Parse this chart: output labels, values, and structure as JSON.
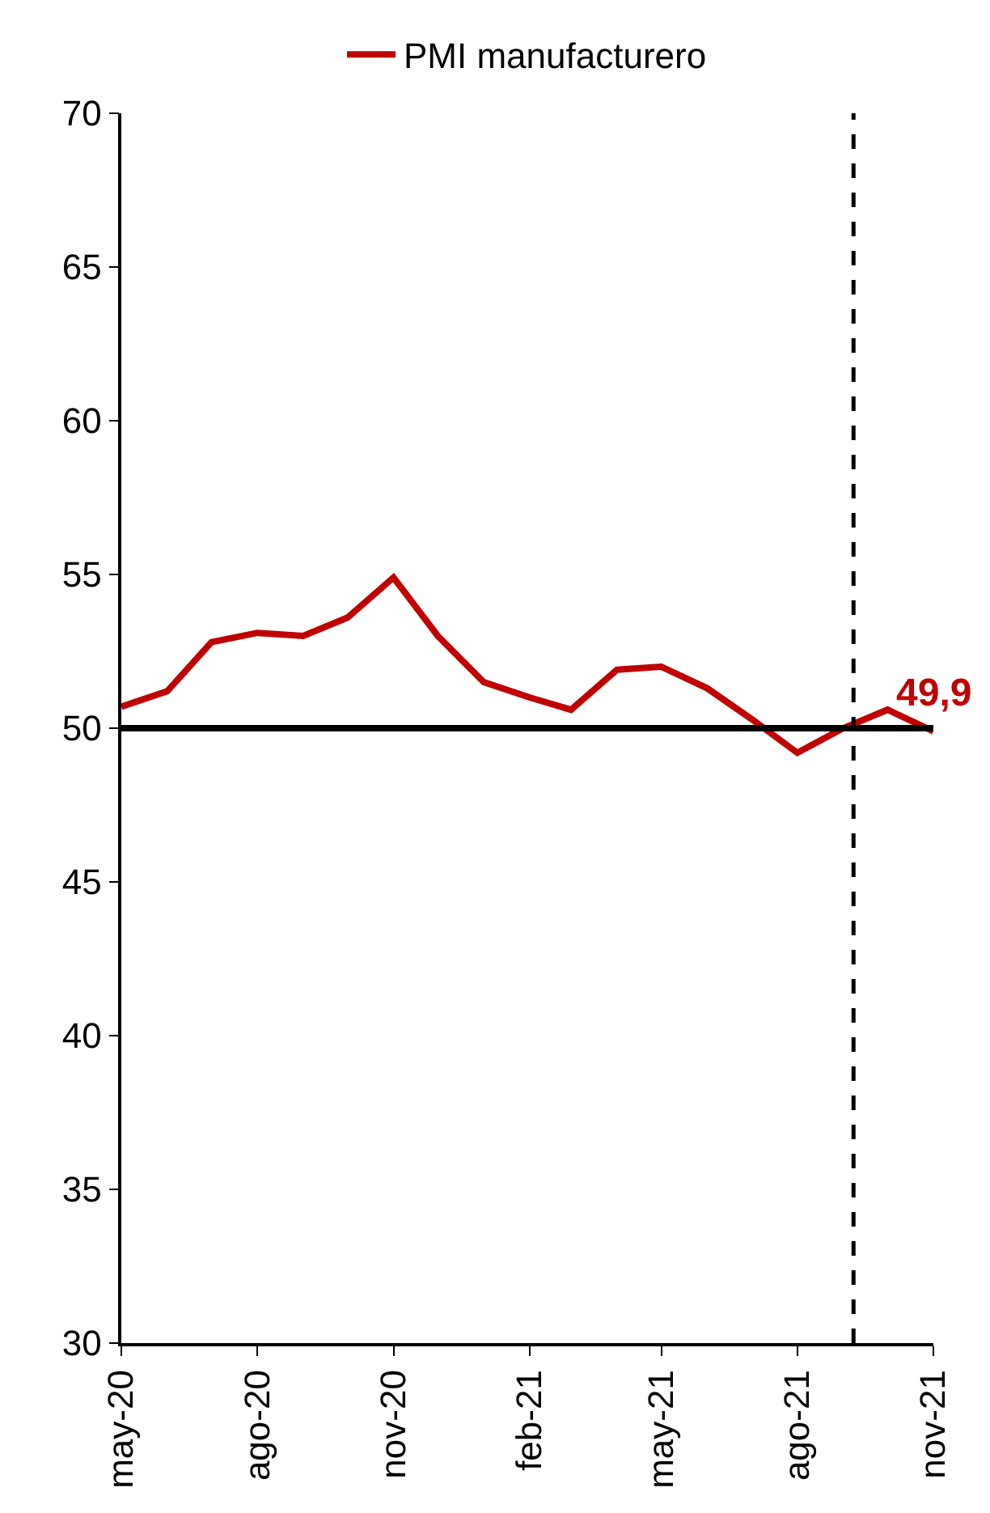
{
  "chart_data": {
    "type": "line",
    "x": [
      "2020-05",
      "2020-06",
      "2020-07",
      "2020-08",
      "2020-09",
      "2020-10",
      "2020-11",
      "2020-12",
      "2021-01",
      "2021-02",
      "2021-03",
      "2021-04",
      "2021-05",
      "2021-06",
      "2021-07",
      "2021-08",
      "2021-09",
      "2021-10",
      "2021-11"
    ],
    "series": [
      {
        "name": "PMI manufacturero",
        "color": "#c00000",
        "values": [
          50.7,
          51.2,
          52.8,
          53.1,
          53.0,
          53.6,
          54.9,
          53.0,
          51.5,
          51.0,
          50.6,
          51.9,
          52.0,
          51.3,
          50.3,
          49.2,
          50.0,
          50.6,
          49.9
        ]
      }
    ],
    "xlim": [
      "2020-05",
      "2021-11"
    ],
    "xticks": [
      {
        "value": "2020-05",
        "label": "may-20"
      },
      {
        "value": "2020-08",
        "label": "ago-20"
      },
      {
        "value": "2020-11",
        "label": "nov-20"
      },
      {
        "value": "2021-02",
        "label": "feb-21"
      },
      {
        "value": "2021-05",
        "label": "may-21"
      },
      {
        "value": "2021-08",
        "label": "ago-21"
      },
      {
        "value": "2021-11",
        "label": "nov-21"
      }
    ],
    "ylim": [
      30,
      70
    ],
    "yticks": [
      30,
      35,
      40,
      45,
      50,
      55,
      60,
      65,
      70
    ],
    "ref_lines": [
      {
        "axis": "y",
        "value": 50,
        "color": "#000000",
        "line_style": "solid"
      },
      {
        "axis": "x",
        "value": "2021-09-08",
        "color": "#000000",
        "line_style": "dashed"
      }
    ],
    "annotations": [
      {
        "text": "49,9",
        "x": "2021-11",
        "y": 49.9
      }
    ],
    "legend": "top",
    "grid": false,
    "marker": "none",
    "line_style": "solid"
  }
}
